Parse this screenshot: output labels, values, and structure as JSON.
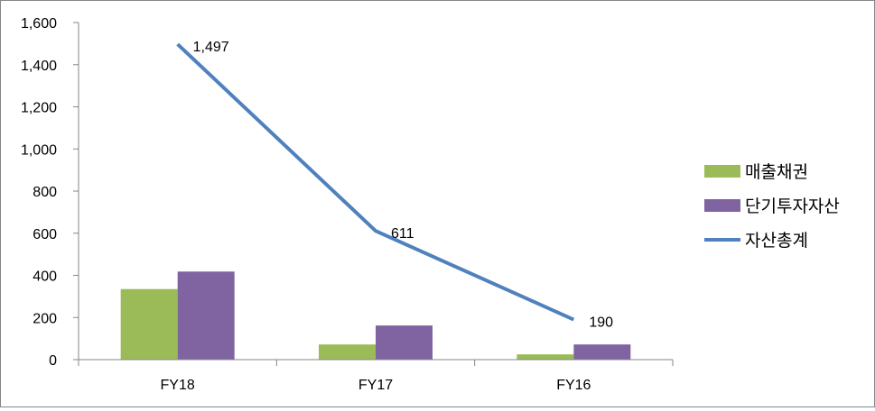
{
  "chart_data": {
    "type": "bar",
    "categories": [
      "FY18",
      "FY17",
      "FY16"
    ],
    "ylim": [
      0,
      1600
    ],
    "yticks": [
      0,
      200,
      400,
      600,
      800,
      1000,
      1200,
      1400,
      1600
    ],
    "ytick_labels": [
      "0",
      "200",
      "400",
      "600",
      "800",
      "1,000",
      "1,200",
      "1,400",
      "1,600"
    ],
    "grid": false,
    "legend_position": "right",
    "series": [
      {
        "name": "매출채권",
        "type": "bar",
        "color": "#9BBB59",
        "values": [
          335,
          72,
          25
        ]
      },
      {
        "name": "단기투자자산",
        "type": "bar",
        "color": "#8064A2",
        "values": [
          418,
          162,
          72
        ]
      },
      {
        "name": "자산총계",
        "type": "line",
        "color": "#4F81BD",
        "values": [
          1497,
          611,
          190
        ],
        "data_labels": [
          "1,497",
          "611",
          "190"
        ]
      }
    ]
  }
}
